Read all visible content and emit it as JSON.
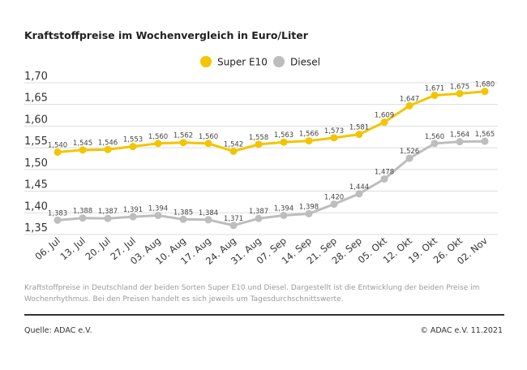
{
  "chart_data": {
    "type": "line",
    "title": "Kraftstoffpreise im Wochenvergleich in Euro/Liter",
    "categories": [
      "06. Jul",
      "13. Jul",
      "20. Jul",
      "27. Jul",
      "03. Aug",
      "10. Aug",
      "17. Aug",
      "24. Aug",
      "31. Aug",
      "07. Sep",
      "14. Sep",
      "21. Sep",
      "28. Sep",
      "05. Okt",
      "12. Okt",
      "19. Okt",
      "26. Okt",
      "02. Nov"
    ],
    "series": [
      {
        "name": "Super E10",
        "color": "#f2c500",
        "values": [
          1.54,
          1.545,
          1.546,
          1.553,
          1.56,
          1.562,
          1.56,
          1.542,
          1.558,
          1.563,
          1.566,
          1.573,
          1.581,
          1.609,
          1.647,
          1.671,
          1.675,
          1.68
        ]
      },
      {
        "name": "Diesel",
        "color": "#bdbdbd",
        "values": [
          1.383,
          1.388,
          1.387,
          1.391,
          1.394,
          1.385,
          1.384,
          1.371,
          1.387,
          1.394,
          1.398,
          1.42,
          1.444,
          1.478,
          1.526,
          1.56,
          1.564,
          1.565
        ]
      }
    ],
    "yticks": [
      "1,70",
      "1,65",
      "1,60",
      "1,55",
      "1,50",
      "1,45",
      "1,40",
      "1,35"
    ],
    "ylim": [
      1.35,
      1.7
    ],
    "grid": true,
    "legend": "top-center"
  },
  "footnote": "Kraftstoffpreise in Deutschland der beiden Sorten Super E10 und Diesel. Dargestellt ist die Entwicklung der beiden Preise im Wochenrhythmus. Bei den Preisen handelt es sich jeweils um Tagesdurchschnittswerte.",
  "source": "Quelle: ADAC e.V.",
  "copyright": "© ADAC e.V. 11.2021"
}
